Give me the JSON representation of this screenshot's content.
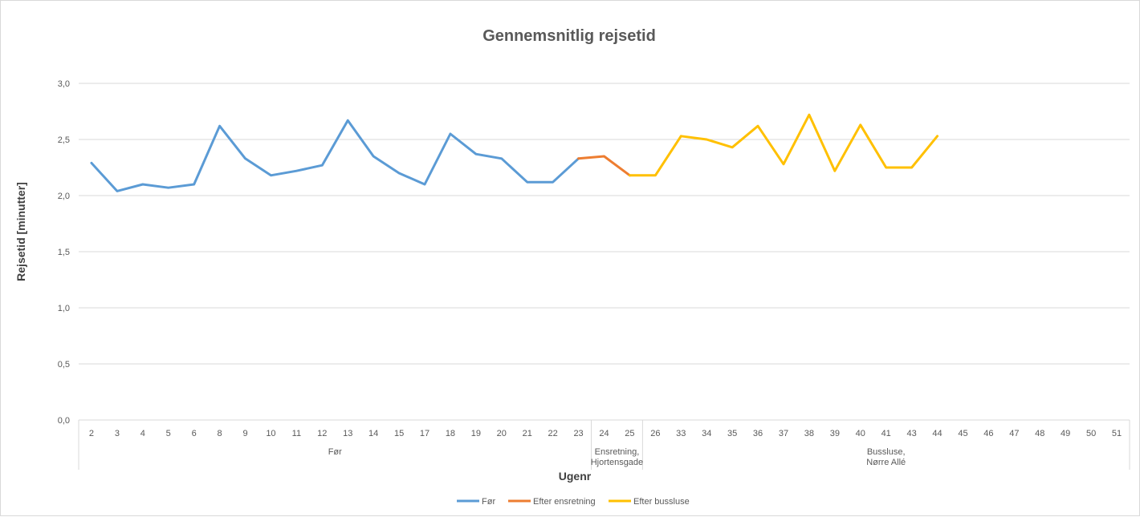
{
  "chart_data": {
    "type": "line",
    "title": "Gennemsnitlig rejsetid",
    "xlabel": "Ugenr",
    "ylabel": "Rejsetid [minutter]",
    "ylim": [
      0,
      3.0
    ],
    "yticks": [
      "0,0",
      "0,5",
      "1,0",
      "1,5",
      "2,0",
      "2,5",
      "3,0"
    ],
    "categories": [
      "2",
      "3",
      "4",
      "5",
      "6",
      "8",
      "9",
      "10",
      "11",
      "12",
      "13",
      "14",
      "15",
      "17",
      "18",
      "19",
      "20",
      "21",
      "22",
      "23",
      "24",
      "25",
      "26",
      "33",
      "34",
      "35",
      "36",
      "37",
      "38",
      "39",
      "40",
      "41",
      "43",
      "44",
      "45",
      "46",
      "47",
      "48",
      "49",
      "50",
      "51"
    ],
    "groups": [
      {
        "label": [
          "Før"
        ],
        "start": 0,
        "end": 19
      },
      {
        "label": [
          "Ensretning,",
          "Hjortensgade"
        ],
        "start": 20,
        "end": 21
      },
      {
        "label": [
          "Bussluse,",
          "Nørre Allé"
        ],
        "start": 22,
        "end": 40
      }
    ],
    "series": [
      {
        "name": "Før",
        "color": "#5b9bd5",
        "values": [
          2.29,
          2.04,
          2.1,
          2.07,
          2.1,
          2.62,
          2.33,
          2.18,
          2.22,
          2.27,
          2.67,
          2.35,
          2.2,
          2.1,
          2.55,
          2.37,
          2.33,
          2.12,
          2.12,
          2.33,
          null,
          null,
          null,
          null,
          null,
          null,
          null,
          null,
          null,
          null,
          null,
          null,
          null,
          null,
          null,
          null,
          null,
          null,
          null,
          null,
          null
        ]
      },
      {
        "name": "Efter ensretning",
        "color": "#ed7d31",
        "values": [
          null,
          null,
          null,
          null,
          null,
          null,
          null,
          null,
          null,
          null,
          null,
          null,
          null,
          null,
          null,
          null,
          null,
          null,
          null,
          2.33,
          2.35,
          2.18,
          null,
          null,
          null,
          null,
          null,
          null,
          null,
          null,
          null,
          null,
          null,
          null,
          null,
          null,
          null,
          null,
          null,
          null,
          null
        ]
      },
      {
        "name": "Efter bussluse",
        "color": "#ffc000",
        "values": [
          null,
          null,
          null,
          null,
          null,
          null,
          null,
          null,
          null,
          null,
          null,
          null,
          null,
          null,
          null,
          null,
          null,
          null,
          null,
          null,
          null,
          2.18,
          2.18,
          2.53,
          2.5,
          2.43,
          2.62,
          2.28,
          2.72,
          2.22,
          2.63,
          2.25,
          2.25,
          2.53,
          null,
          null,
          null,
          null,
          null,
          null,
          null
        ]
      }
    ],
    "grid": true,
    "legend": "bottom"
  }
}
